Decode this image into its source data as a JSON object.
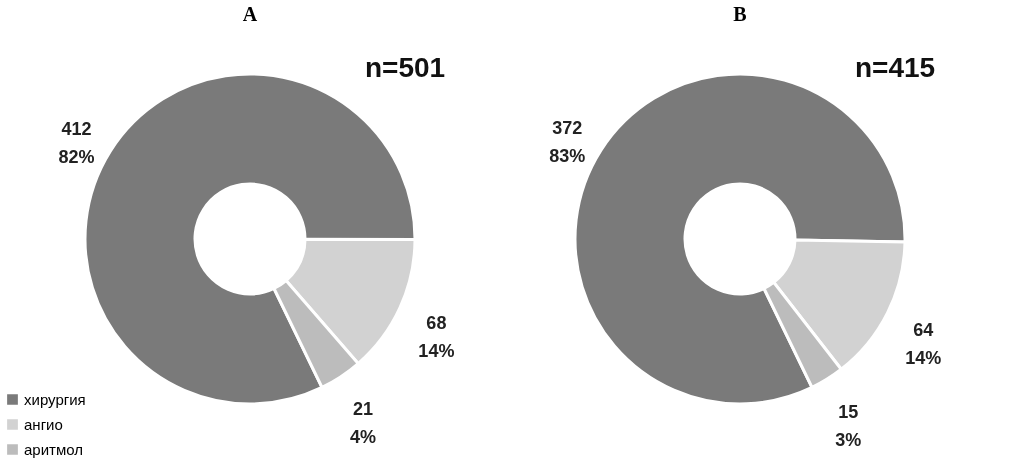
{
  "chart_data": [
    {
      "type": "donut",
      "title": "A",
      "categories": [
        "хирургия",
        "ангио",
        "аритмол"
      ],
      "values": [
        412,
        68,
        21
      ],
      "colors": [
        "#7a7a7a",
        "#d2d2d2",
        "#bcbcbc"
      ],
      "value_labels": [
        "412\n82%",
        "68\n14%",
        "21\n4%"
      ],
      "annotations": [
        "n=501"
      ],
      "legend": "bottom left"
    },
    {
      "type": "donut",
      "title": "B",
      "categories": [
        null,
        null,
        null
      ],
      "values": [
        372,
        64,
        15
      ],
      "colors": [
        "#7a7a7a",
        "#d2d2d2",
        "#bcbcbc"
      ],
      "value_labels": [
        "372\n83%",
        "64\n14%",
        "15\n3%"
      ],
      "annotations": [
        "n=415"
      ]
    }
  ]
}
